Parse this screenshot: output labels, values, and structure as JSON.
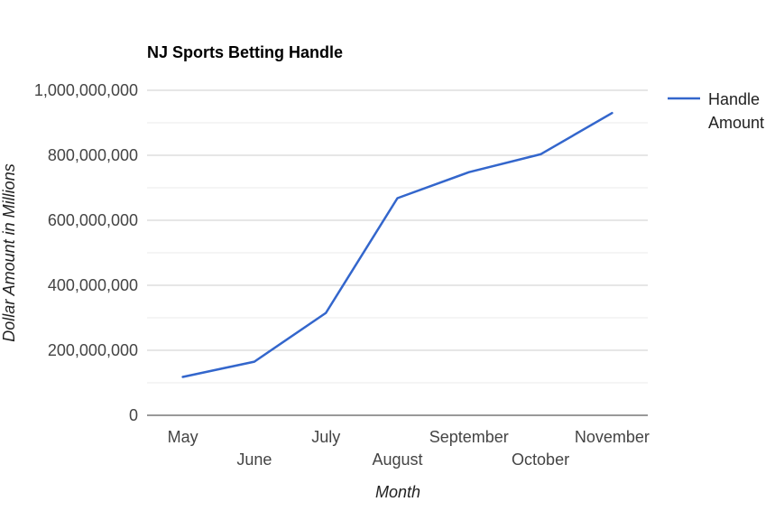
{
  "chart_data": {
    "type": "line",
    "title": "NJ Sports Betting Handle",
    "xlabel": "Month",
    "ylabel": "Dollar Amount in Millions",
    "categories": [
      "May",
      "June",
      "July",
      "August",
      "September",
      "October",
      "November"
    ],
    "series": [
      {
        "name": "Handle Amount",
        "legend_lines": [
          "Handle",
          "Amount"
        ],
        "color": "#3366cc",
        "values": [
          118000000,
          165000000,
          315000000,
          668000000,
          748000000,
          803000000,
          930000000
        ]
      }
    ],
    "ylim": [
      0,
      1000000000
    ],
    "yticks": [
      {
        "value": 0,
        "label": "0"
      },
      {
        "value": 200000000,
        "label": "200,000,000"
      },
      {
        "value": 400000000,
        "label": "400,000,000"
      },
      {
        "value": 600000000,
        "label": "600,000,000"
      },
      {
        "value": 800000000,
        "label": "800,000,000"
      },
      {
        "value": 1000000000,
        "label": "1,000,000,000"
      }
    ],
    "grid": true,
    "legend": "right"
  }
}
